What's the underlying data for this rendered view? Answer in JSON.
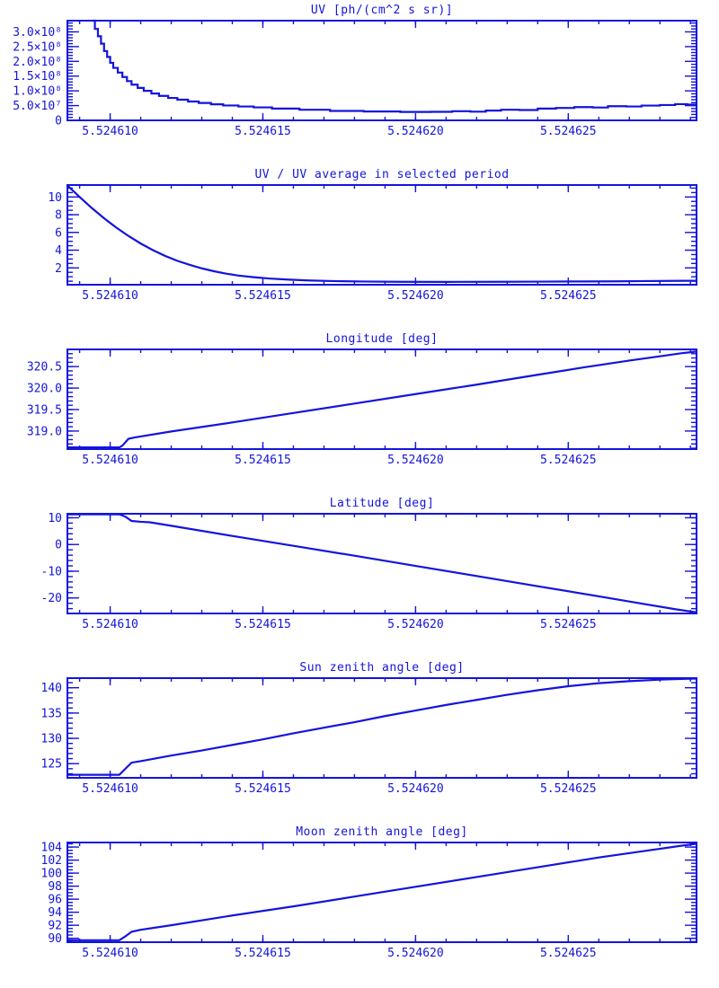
{
  "page": {
    "background": "#FFFFFF",
    "accent": "#1414DC"
  },
  "chart_data": {
    "x_axis": {
      "xlim": [
        5.5246086,
        5.5246292
      ],
      "tick_values": [
        5.52461,
        5.524615,
        5.52462,
        5.524625
      ],
      "tick_labels": [
        "5.524610",
        "5.524615",
        "5.524620",
        "5.524625"
      ],
      "minor_step": 1e-06
    },
    "panels": [
      {
        "type": "line",
        "title": "UV [ph/(cm^2 s sr)]",
        "ylabel": "UV [ph/(cm^2 s sr)]",
        "ylim": [
          0,
          338000000.0
        ],
        "y_tick_values": [
          0,
          50000000.0,
          100000000.0,
          150000000.0,
          200000000.0,
          250000000.0,
          300000000.0
        ],
        "y_tick_labels": [
          "0",
          "5.0×10⁷",
          "1.0×10⁸",
          "1.5×10⁸",
          "2.0×10⁸",
          "2.5×10⁸",
          "3.0×10⁸"
        ],
        "y_minor_step": 10000000.0,
        "steps": true,
        "points": [
          [
            5.5246094,
            338000000.0
          ],
          [
            5.5246095,
            310000000.0
          ],
          [
            5.5246096,
            285000000.0
          ],
          [
            5.5246097,
            260000000.0
          ],
          [
            5.5246098,
            235000000.0
          ],
          [
            5.5246099,
            215000000.0
          ],
          [
            5.52461,
            195000000.0
          ],
          [
            5.5246101,
            178000000.0
          ],
          [
            5.52461025,
            162000000.0
          ],
          [
            5.5246104,
            147000000.0
          ],
          [
            5.52461055,
            133000000.0
          ],
          [
            5.5246107,
            121000000.0
          ],
          [
            5.5246109,
            110000000.0
          ],
          [
            5.5246111,
            100000000.0
          ],
          [
            5.52461135,
            91000000.0
          ],
          [
            5.5246116,
            83000000.0
          ],
          [
            5.5246119,
            76000000.0
          ],
          [
            5.5246122,
            70000000.0
          ],
          [
            5.52461255,
            64000000.0
          ],
          [
            5.5246129,
            59000000.0
          ],
          [
            5.5246133,
            54500000.0
          ],
          [
            5.5246137,
            50500000.0
          ],
          [
            5.5246142,
            47000000.0
          ],
          [
            5.5246147,
            44000000.0
          ],
          [
            5.5246153,
            40000000.0
          ],
          [
            5.5246162,
            36000000.0
          ],
          [
            5.5246172,
            32000000.0
          ],
          [
            5.5246183,
            30000000.0
          ],
          [
            5.5246195,
            28500000.0
          ],
          [
            5.5246205,
            29000000.0
          ],
          [
            5.5246212,
            31000000.0
          ],
          [
            5.5246218,
            29500000.0
          ],
          [
            5.5246223,
            33000000.0
          ],
          [
            5.5246228,
            36000000.0
          ],
          [
            5.5246234,
            35000000.0
          ],
          [
            5.524624,
            40000000.0
          ],
          [
            5.5246246,
            42000000.0
          ],
          [
            5.5246252,
            45000000.0
          ],
          [
            5.5246258,
            43500000.0
          ],
          [
            5.5246263,
            48000000.0
          ],
          [
            5.5246269,
            47000000.0
          ],
          [
            5.5246274,
            50000000.0
          ],
          [
            5.524628,
            52000000.0
          ],
          [
            5.5246285,
            55000000.0
          ],
          [
            5.5246289,
            53500000.0
          ],
          [
            5.5246292,
            57000000.0
          ]
        ]
      },
      {
        "type": "line",
        "title": "UV / UV average in selected period",
        "ylim": [
          0.1,
          11.35
        ],
        "y_tick_values": [
          2,
          4,
          6,
          8,
          10
        ],
        "y_tick_labels": [
          "2",
          "4",
          "6",
          "8",
          "10"
        ],
        "y_minor_step": 0.5,
        "steps": false,
        "points": [
          [
            5.5246086,
            11.3
          ],
          [
            5.524609,
            10.0
          ],
          [
            5.5246094,
            8.75
          ],
          [
            5.5246098,
            7.6
          ],
          [
            5.5246102,
            6.55
          ],
          [
            5.5246106,
            5.6
          ],
          [
            5.524611,
            4.75
          ],
          [
            5.5246114,
            4.0
          ],
          [
            5.5246118,
            3.35
          ],
          [
            5.5246122,
            2.8
          ],
          [
            5.5246126,
            2.35
          ],
          [
            5.524613,
            1.95
          ],
          [
            5.5246134,
            1.62
          ],
          [
            5.5246138,
            1.35
          ],
          [
            5.5246142,
            1.13
          ],
          [
            5.5246147,
            0.95
          ],
          [
            5.5246152,
            0.8
          ],
          [
            5.5246158,
            0.68
          ],
          [
            5.5246165,
            0.58
          ],
          [
            5.5246173,
            0.51
          ],
          [
            5.5246183,
            0.46
          ],
          [
            5.5246195,
            0.43
          ],
          [
            5.524621,
            0.42
          ],
          [
            5.5246225,
            0.43
          ],
          [
            5.524624,
            0.45
          ],
          [
            5.5246255,
            0.47
          ],
          [
            5.5246265,
            0.48
          ],
          [
            5.5246275,
            0.51
          ],
          [
            5.5246283,
            0.53
          ],
          [
            5.5246292,
            0.55
          ]
        ]
      },
      {
        "type": "line",
        "title": "Longitude [deg]",
        "ylim": [
          318.58,
          320.9
        ],
        "y_tick_values": [
          319.0,
          319.5,
          320.0,
          320.5
        ],
        "y_tick_labels": [
          "319.0",
          "319.5",
          "320.0",
          "320.5"
        ],
        "y_minor_step": 0.1,
        "steps": false,
        "points": [
          [
            5.5246086,
            318.62
          ],
          [
            5.5246103,
            318.62
          ],
          [
            5.5246104,
            318.66
          ],
          [
            5.5246106,
            318.82
          ],
          [
            5.5246108,
            318.85
          ],
          [
            5.524612,
            318.99
          ],
          [
            5.524614,
            319.2
          ],
          [
            5.524616,
            319.42
          ],
          [
            5.524618,
            319.64
          ],
          [
            5.52462,
            319.86
          ],
          [
            5.524622,
            320.08
          ],
          [
            5.524624,
            320.31
          ],
          [
            5.5246255,
            320.48
          ],
          [
            5.524627,
            320.64
          ],
          [
            5.524628,
            320.74
          ],
          [
            5.5246287,
            320.81
          ],
          [
            5.5246292,
            320.85
          ]
        ]
      },
      {
        "type": "line",
        "title": "Latitude [deg]",
        "ylim": [
          -25.8,
          11.5
        ],
        "y_tick_values": [
          -20,
          -10,
          0,
          10
        ],
        "y_tick_labels": [
          "-20",
          "-10",
          "0",
          "10"
        ],
        "y_minor_step": 2,
        "steps": false,
        "points": [
          [
            5.5246086,
            11.3
          ],
          [
            5.5246103,
            11.3
          ],
          [
            5.5246105,
            10.4
          ],
          [
            5.5246107,
            8.8
          ],
          [
            5.524611,
            8.5
          ],
          [
            5.5246113,
            8.3
          ],
          [
            5.524612,
            7.0
          ],
          [
            5.524614,
            3.2
          ],
          [
            5.524616,
            -0.5
          ],
          [
            5.524618,
            -4.2
          ],
          [
            5.52462,
            -8.0
          ],
          [
            5.524622,
            -11.8
          ],
          [
            5.524624,
            -15.6
          ],
          [
            5.524626,
            -19.4
          ],
          [
            5.5246275,
            -22.3
          ],
          [
            5.5246285,
            -24.2
          ],
          [
            5.5246292,
            -25.4
          ]
        ]
      },
      {
        "type": "line",
        "title": "Sun zenith angle [deg]",
        "ylim": [
          122.2,
          141.9
        ],
        "y_tick_values": [
          125,
          130,
          135,
          140
        ],
        "y_tick_labels": [
          "125",
          "130",
          "135",
          "140"
        ],
        "y_minor_step": 1,
        "steps": false,
        "points": [
          [
            5.5246086,
            122.8
          ],
          [
            5.5246103,
            122.8
          ],
          [
            5.5246105,
            124.0
          ],
          [
            5.5246107,
            125.2
          ],
          [
            5.524611,
            125.5
          ],
          [
            5.524612,
            126.6
          ],
          [
            5.524613,
            127.6
          ],
          [
            5.524614,
            128.7
          ],
          [
            5.524615,
            129.8
          ],
          [
            5.524616,
            131.0
          ],
          [
            5.524617,
            132.1
          ],
          [
            5.524618,
            133.2
          ],
          [
            5.524619,
            134.4
          ],
          [
            5.52462,
            135.5
          ],
          [
            5.524621,
            136.6
          ],
          [
            5.524622,
            137.6
          ],
          [
            5.524623,
            138.6
          ],
          [
            5.524624,
            139.5
          ],
          [
            5.524625,
            140.3
          ],
          [
            5.524626,
            140.9
          ],
          [
            5.524627,
            141.3
          ],
          [
            5.524628,
            141.6
          ],
          [
            5.5246287,
            141.75
          ],
          [
            5.5246292,
            141.8
          ]
        ]
      },
      {
        "type": "line",
        "title": "Moon zenith angle [deg]",
        "ylim": [
          89.4,
          104.7
        ],
        "y_tick_values": [
          90,
          92,
          94,
          96,
          98,
          100,
          102,
          104
        ],
        "y_tick_labels": [
          "90",
          "92",
          "94",
          "96",
          "98",
          "100",
          "102",
          "104"
        ],
        "y_minor_step": 0.5,
        "steps": false,
        "points": [
          [
            5.5246086,
            89.7
          ],
          [
            5.5246103,
            89.7
          ],
          [
            5.5246105,
            90.3
          ],
          [
            5.5246107,
            91.0
          ],
          [
            5.524611,
            91.3
          ],
          [
            5.524612,
            92.0
          ],
          [
            5.524614,
            93.5
          ],
          [
            5.524616,
            94.9
          ],
          [
            5.524618,
            96.4
          ],
          [
            5.52462,
            97.9
          ],
          [
            5.524622,
            99.4
          ],
          [
            5.524624,
            100.9
          ],
          [
            5.524626,
            102.4
          ],
          [
            5.5246275,
            103.4
          ],
          [
            5.5246287,
            104.2
          ],
          [
            5.5246292,
            104.5
          ]
        ]
      }
    ]
  }
}
